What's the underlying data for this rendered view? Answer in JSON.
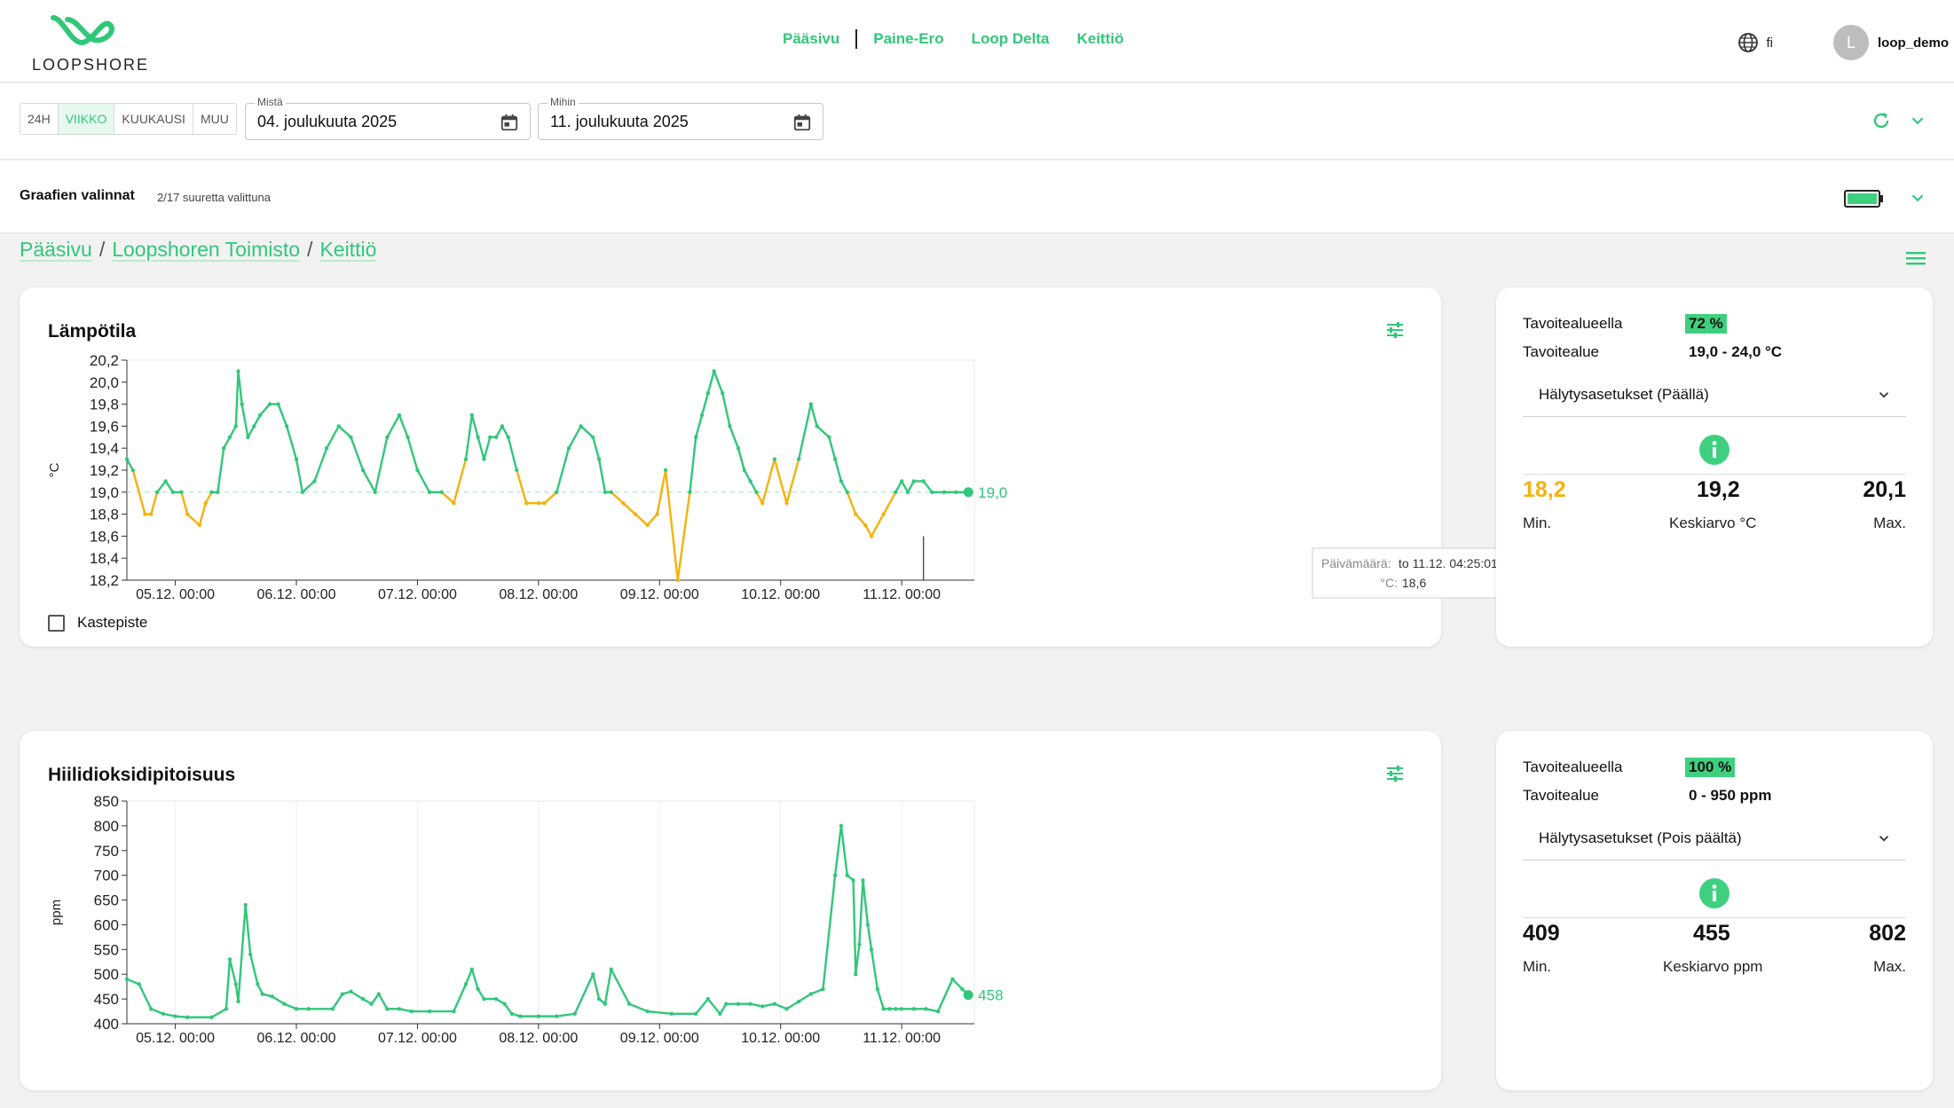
{
  "app": {
    "logo_text": "LOOPSHORE",
    "nav": [
      "Pääsivu",
      "Paine-Ero",
      "Loop Delta",
      "Keittiö"
    ],
    "lang": "fi",
    "avatar_letter": "L",
    "user": "loop_demo",
    "brand_color": "#31c77a",
    "warn_color": "#f5b20c"
  },
  "toolbar": {
    "ranges": [
      "24H",
      "VIIKKO",
      "KUUKAUSI",
      "MUU"
    ],
    "active_range": "VIIKKO",
    "from_label": "Mistä",
    "from_value": "04. joulukuuta 2025",
    "to_label": "Mihin",
    "to_value": "11. joulukuuta 2025"
  },
  "selection": {
    "title": "Graafien valinnat",
    "count": "2/17 suuretta valittuna"
  },
  "breadcrumb": [
    "Pääsivu",
    "Loopshoren Toimisto",
    "Keittiö"
  ],
  "temperature": {
    "title": "Lämpötila",
    "checkbox_label": "Kastepiste",
    "tooltip_date_label": "Päivämäärä:",
    "tooltip_date_value": "to 11.12. 04:25:01",
    "tooltip_unit_label": "°C:",
    "tooltip_value": "18,6",
    "stats": {
      "in_target_label": "Tavoitealueella",
      "in_target_value": "72 %",
      "target_label": "Tavoitealue",
      "target_value": "19,0 - 24,0 °C",
      "alarm": "Hälytysasetukset (Päällä)",
      "min": "18,2",
      "avg": "19,2",
      "max": "20,1",
      "min_label": "Min.",
      "avg_label": "Keskiarvo °C",
      "max_label": "Max."
    }
  },
  "co2": {
    "title": "Hiilidioksidipitoisuus",
    "stats": {
      "in_target_label": "Tavoitealueella",
      "in_target_value": "100 %",
      "target_label": "Tavoitealue",
      "target_value": "0 - 950 ppm",
      "alarm": "Hälytysasetukset (Pois päältä)",
      "min": "409",
      "avg": "455",
      "max": "802",
      "min_label": "Min.",
      "avg_label": "Keskiarvo ppm",
      "max_label": "Max."
    }
  },
  "chart_data": [
    {
      "type": "line",
      "title": "Lämpötila",
      "ylabel": "°C",
      "ylim": [
        18.2,
        20.2
      ],
      "yticks": [
        "20,2",
        "20,0",
        "19,8",
        "19,6",
        "19,4",
        "19,2",
        "19,0",
        "18,8",
        "18,6",
        "18,4",
        "18,2"
      ],
      "xticks": [
        "05.12. 00:00",
        "06.12. 00:00",
        "07.12. 00:00",
        "08.12. 00:00",
        "09.12. 00:00",
        "10.12. 00:00",
        "11.12. 00:00"
      ],
      "x_range_days": [
        4.6,
        11.6
      ],
      "threshold": 19.0,
      "last_value_label": "19,0",
      "grid": false,
      "series": [
        {
          "x": [
            4.6,
            4.65,
            4.75,
            4.8,
            4.85,
            4.92,
            4.98,
            5.05,
            5.1,
            5.2,
            5.25,
            5.3,
            5.35,
            5.4,
            5.45,
            5.5,
            5.52,
            5.55,
            5.6,
            5.65,
            5.7,
            5.78,
            5.85,
            5.92,
            6.0,
            6.05,
            6.15,
            6.25,
            6.35,
            6.45,
            6.55,
            6.65,
            6.75,
            6.85,
            6.92,
            7.0,
            7.1,
            7.2,
            7.3,
            7.4,
            7.45,
            7.5,
            7.55,
            7.6,
            7.65,
            7.7,
            7.75,
            7.82,
            7.9,
            8.0,
            8.05,
            8.15,
            8.25,
            8.35,
            8.45,
            8.5,
            8.55,
            8.6,
            8.7,
            8.8,
            8.9,
            8.98,
            9.05,
            9.15,
            9.25,
            9.3,
            9.35,
            9.4,
            9.45,
            9.52,
            9.58,
            9.65,
            9.7,
            9.75,
            9.8,
            9.85,
            9.95,
            10.05,
            10.15,
            10.25,
            10.3,
            10.4,
            10.45,
            10.5,
            10.55,
            10.62,
            10.7,
            10.75,
            10.85,
            10.95,
            11.0,
            11.05,
            11.1,
            11.18,
            11.25,
            11.35,
            11.45,
            11.55
          ],
          "y": [
            19.3,
            19.2,
            18.8,
            18.8,
            19.0,
            19.1,
            19.0,
            19.0,
            18.8,
            18.7,
            18.9,
            19.0,
            19.0,
            19.4,
            19.5,
            19.6,
            20.1,
            19.8,
            19.5,
            19.6,
            19.7,
            19.8,
            19.8,
            19.6,
            19.3,
            19.0,
            19.1,
            19.4,
            19.6,
            19.5,
            19.2,
            19.0,
            19.5,
            19.7,
            19.5,
            19.2,
            19.0,
            19.0,
            18.9,
            19.3,
            19.7,
            19.5,
            19.3,
            19.5,
            19.5,
            19.6,
            19.5,
            19.2,
            18.9,
            18.9,
            18.9,
            19.0,
            19.4,
            19.6,
            19.5,
            19.3,
            19.0,
            19.0,
            18.9,
            18.8,
            18.7,
            18.8,
            19.2,
            18.2,
            19.0,
            19.5,
            19.7,
            19.9,
            20.1,
            19.9,
            19.6,
            19.4,
            19.2,
            19.1,
            19.0,
            18.9,
            19.3,
            18.9,
            19.3,
            19.8,
            19.6,
            19.5,
            19.3,
            19.1,
            19.0,
            18.8,
            18.7,
            18.6,
            18.8,
            19.0,
            19.1,
            19.0,
            19.1,
            19.1,
            19.0,
            19.0,
            19.0,
            19.0
          ]
        }
      ]
    },
    {
      "type": "line",
      "title": "Hiilidioksidipitoisuus",
      "ylabel": "ppm",
      "ylim": [
        400,
        850
      ],
      "yticks": [
        "850",
        "800",
        "750",
        "700",
        "650",
        "600",
        "550",
        "500",
        "450",
        "400"
      ],
      "xticks": [
        "05.12. 00:00",
        "06.12. 00:00",
        "07.12. 00:00",
        "08.12. 00:00",
        "09.12. 00:00",
        "10.12. 00:00",
        "11.12. 00:00"
      ],
      "x_range_days": [
        4.6,
        11.6
      ],
      "last_value_label": "458",
      "grid": true,
      "series": [
        {
          "x": [
            4.6,
            4.7,
            4.8,
            4.9,
            5.0,
            5.1,
            5.3,
            5.42,
            5.45,
            5.5,
            5.52,
            5.58,
            5.62,
            5.68,
            5.72,
            5.8,
            5.9,
            6.0,
            6.1,
            6.3,
            6.38,
            6.45,
            6.55,
            6.62,
            6.68,
            6.75,
            6.85,
            6.95,
            7.1,
            7.3,
            7.4,
            7.45,
            7.5,
            7.55,
            7.65,
            7.72,
            7.78,
            7.85,
            8.0,
            8.15,
            8.3,
            8.45,
            8.5,
            8.55,
            8.6,
            8.75,
            8.9,
            9.1,
            9.3,
            9.4,
            9.5,
            9.55,
            9.65,
            9.75,
            9.85,
            9.95,
            10.05,
            10.15,
            10.25,
            10.35,
            10.45,
            10.5,
            10.55,
            10.6,
            10.62,
            10.65,
            10.68,
            10.72,
            10.75,
            10.8,
            10.85,
            10.9,
            10.95,
            11.0,
            11.1,
            11.2,
            11.3,
            11.42,
            11.5,
            11.55
          ],
          "y": [
            490,
            480,
            430,
            420,
            415,
            413,
            413,
            430,
            530,
            480,
            445,
            640,
            540,
            480,
            460,
            455,
            440,
            430,
            430,
            430,
            460,
            465,
            450,
            440,
            460,
            430,
            430,
            425,
            425,
            425,
            480,
            510,
            470,
            450,
            450,
            440,
            420,
            415,
            415,
            415,
            420,
            500,
            450,
            440,
            510,
            440,
            425,
            420,
            420,
            450,
            420,
            440,
            440,
            440,
            435,
            440,
            430,
            445,
            460,
            470,
            700,
            800,
            700,
            690,
            500,
            560,
            690,
            600,
            550,
            470,
            430,
            430,
            430,
            430,
            430,
            430,
            425,
            490,
            470,
            458
          ]
        }
      ]
    }
  ]
}
